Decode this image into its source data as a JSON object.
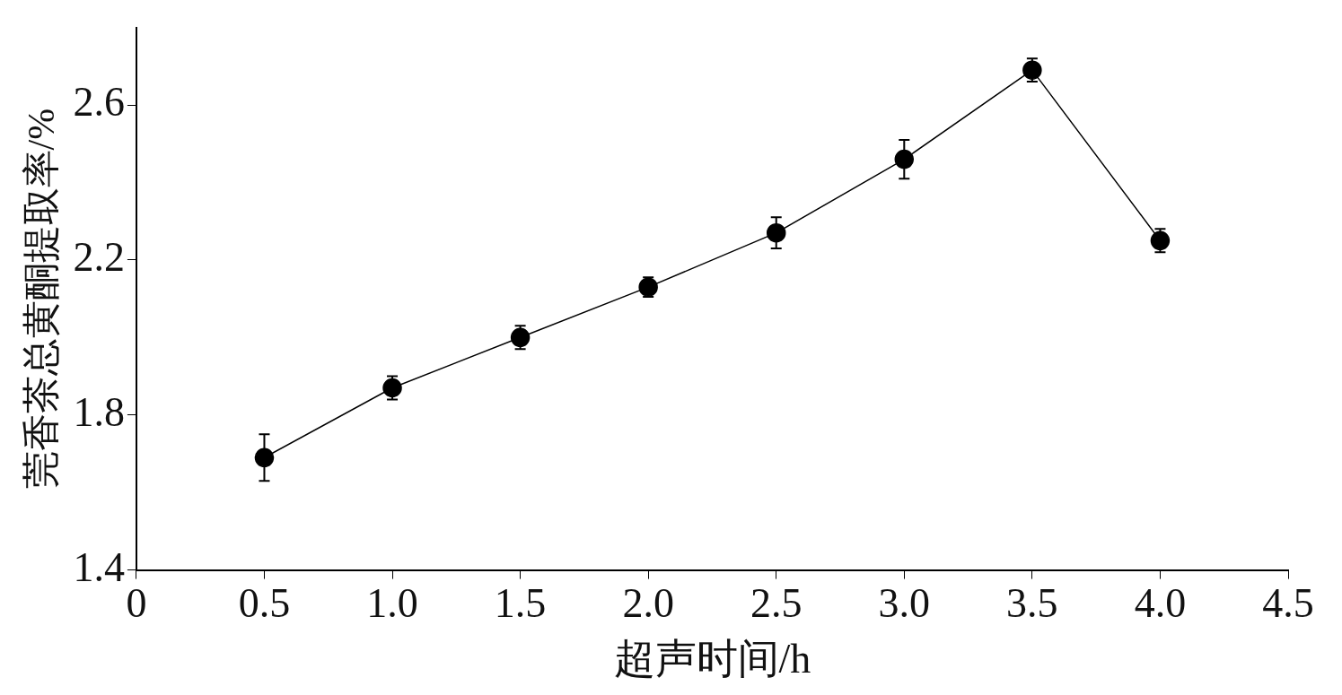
{
  "chart_data": {
    "type": "line",
    "xlabel": "超声时间/h",
    "ylabel": "莞香茶总黄酮提取率/%",
    "x": [
      0.5,
      1.0,
      1.5,
      2.0,
      2.5,
      3.0,
      3.5,
      4.0
    ],
    "series": [
      {
        "color": "#000000",
        "values": [
          1.69,
          1.87,
          2.0,
          2.13,
          2.27,
          2.46,
          2.69,
          2.25
        ],
        "errors": [
          0.06,
          0.03,
          0.03,
          0.025,
          0.04,
          0.05,
          0.03,
          0.03
        ]
      }
    ],
    "xlim": [
      0,
      4.5
    ],
    "xticks": [
      0,
      {
        "value": 0.5,
        "label": "0.5"
      },
      {
        "value": 1,
        "label": "1.0"
      },
      {
        "value": 1.5,
        "label": "1.5"
      },
      {
        "value": 2,
        "label": "2.0"
      },
      {
        "value": 2.5,
        "label": "2.5"
      },
      {
        "value": 3,
        "label": "3.0"
      },
      {
        "value": 3.5,
        "label": "3.5"
      },
      {
        "value": 4,
        "label": "4.0"
      },
      {
        "value": 4.5,
        "label": "4.5"
      }
    ],
    "ylim": [
      1.4,
      2.8
    ],
    "yticks": [
      1.4,
      1.8,
      2.2,
      2.6
    ],
    "grid": false,
    "legend": false,
    "marker": "circle",
    "line_style": "solid"
  }
}
